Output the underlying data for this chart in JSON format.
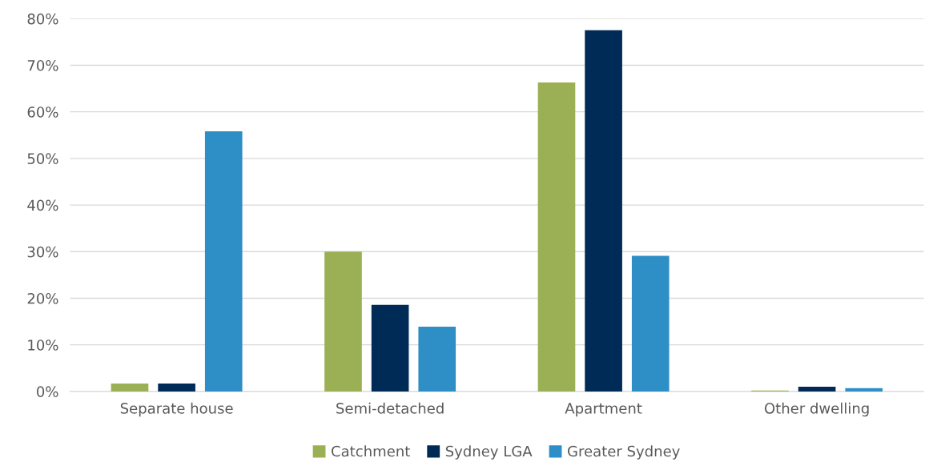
{
  "chart_data": {
    "type": "bar",
    "categories": [
      "Separate house",
      "Semi-detached",
      "Apartment",
      "Other dwelling"
    ],
    "series": [
      {
        "name": "Catchment",
        "color": "#9bb054",
        "values": [
          1.7,
          30.0,
          66.3,
          0.2
        ]
      },
      {
        "name": "Sydney LGA",
        "color": "#002b57",
        "values": [
          1.7,
          18.6,
          77.5,
          1.0
        ]
      },
      {
        "name": "Greater Sydney",
        "color": "#2e8ec6",
        "values": [
          55.8,
          13.9,
          29.1,
          0.7
        ]
      }
    ],
    "ylim": [
      0,
      80
    ],
    "yticks": [
      {
        "value": 0,
        "label": "0%"
      },
      {
        "value": 10,
        "label": "10%"
      },
      {
        "value": 20,
        "label": "20%"
      },
      {
        "value": 30,
        "label": "30%"
      },
      {
        "value": 40,
        "label": "40%"
      },
      {
        "value": 50,
        "label": "50%"
      },
      {
        "value": 60,
        "label": "60%"
      },
      {
        "value": 70,
        "label": "70%"
      },
      {
        "value": 80,
        "label": "80%"
      }
    ],
    "grid": "y",
    "legend": "bottom"
  }
}
